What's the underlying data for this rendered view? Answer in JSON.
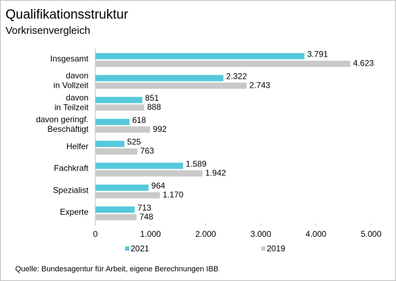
{
  "chart_data": {
    "type": "hbar",
    "title": "Qualifikationsstruktur",
    "subtitle": "Vorkrisenvergleich",
    "source": "Quelle: Bundesagentur für Arbeit, eigene Berechnungen IBB",
    "categories": [
      [
        "Insgesamt"
      ],
      [
        "davon",
        "in Vollzeit"
      ],
      [
        "davon",
        "in Teilzeit"
      ],
      [
        "davon geringf.",
        "Beschäftigt"
      ],
      [
        "Helfer"
      ],
      [
        "Fachkraft"
      ],
      [
        "Spezialist"
      ],
      [
        "Experte"
      ]
    ],
    "series": [
      {
        "name": "2021",
        "color": "#55c8dc",
        "values": [
          3791,
          2322,
          851,
          618,
          525,
          1589,
          964,
          713
        ],
        "value_labels": [
          "3.791",
          "2.322",
          "851",
          "618",
          "525",
          "1.589",
          "964",
          "713"
        ]
      },
      {
        "name": "2019",
        "color": "#c9c9c9",
        "values": [
          4623,
          2743,
          888,
          992,
          763,
          1942,
          1170,
          748
        ],
        "value_labels": [
          "4.623",
          "2.743",
          "888",
          "992",
          "763",
          "1.942",
          "1.170",
          "748"
        ]
      }
    ],
    "xlim": [
      0,
      5000
    ],
    "xticks": [
      0,
      {
        "value": 1000,
        "label": "1.000"
      },
      {
        "value": 2000,
        "label": "2.000"
      },
      {
        "value": 3000,
        "label": "3.000"
      },
      {
        "value": 4000,
        "label": "4.000"
      },
      {
        "value": 5000,
        "label": "5.000"
      }
    ],
    "grid": false,
    "legend": "bottom"
  }
}
